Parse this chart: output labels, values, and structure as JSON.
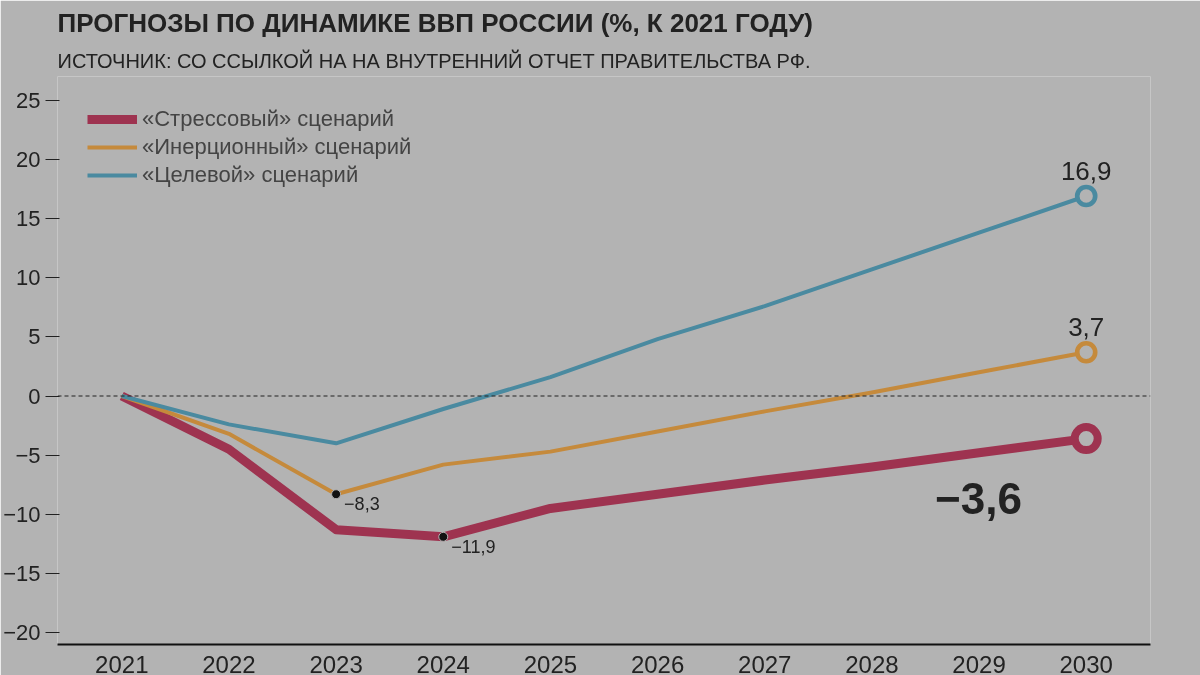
{
  "chart_data": {
    "type": "line",
    "title": "ПРОГНОЗЫ ПО ДИНАМИКЕ ВВП РОССИИ (%, К 2021 ГОДУ)",
    "subtitle": "ИСТОЧНИК: СО ССЫЛКОЙ НА НА ВНУТРЕННИЙ ОТЧЕТ ПРАВИТЕЛЬСТВА РФ.",
    "categories": [
      "2021",
      "2022",
      "2023",
      "2024",
      "2025",
      "2026",
      "2027",
      "2028",
      "2029",
      "2030"
    ],
    "series": [
      {
        "name": "«Стрессовый» сценарий",
        "color": "#9e3350",
        "values": [
          0,
          -4.5,
          -11.3,
          -11.9,
          -9.5,
          -8.3,
          -7.1,
          -6.0,
          -4.8,
          -3.6
        ],
        "value_labels": [
          null,
          null,
          null,
          "−11,9",
          null,
          null,
          null,
          null,
          null,
          "−3,6"
        ]
      },
      {
        "name": "«Инерционный» сценарий",
        "color": "#c58a3c",
        "values": [
          0,
          -3.2,
          -8.3,
          -5.8,
          -4.7,
          -3.0,
          -1.3,
          0.3,
          2.0,
          3.7
        ],
        "value_labels": [
          null,
          null,
          "−8,3",
          null,
          null,
          null,
          null,
          null,
          null,
          "3,7"
        ]
      },
      {
        "name": "«Целевой» сценарий",
        "color": "#4a8aa0",
        "values": [
          0,
          -2.4,
          -4.0,
          -1.1,
          1.6,
          4.8,
          7.6,
          10.7,
          13.8,
          16.9
        ],
        "value_labels": [
          null,
          null,
          null,
          null,
          null,
          null,
          null,
          null,
          null,
          "16,9"
        ]
      }
    ],
    "ylim": [
      -21,
      27
    ],
    "yticks": [
      -20,
      -15,
      -10,
      -5,
      0,
      5,
      10,
      15,
      20,
      25
    ],
    "ref_lines": [
      {
        "axis": "y",
        "value": 0,
        "line_style": "dashed",
        "color": "#222222"
      }
    ],
    "legend": "top left",
    "grid": false
  }
}
